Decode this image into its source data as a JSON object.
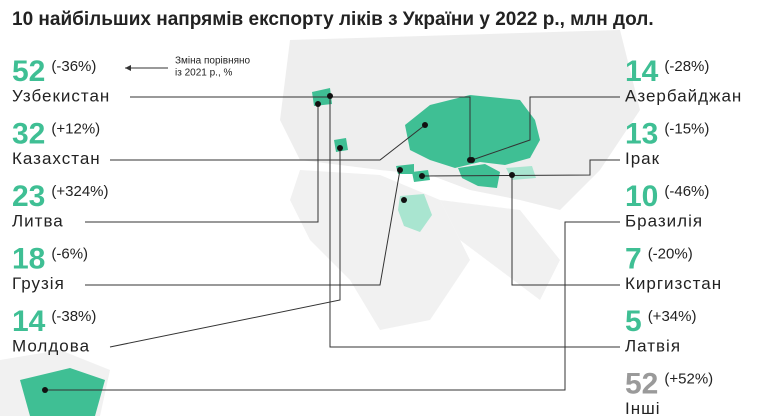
{
  "title": "10 найбільших напрямів експорту ліків з України у 2022 р., млн дол.",
  "legend_note": [
    "Зміна порівняно",
    "із 2021 р., %"
  ],
  "left_column": [
    {
      "value": "52",
      "change": "(-36%)",
      "country": "Узбекистан"
    },
    {
      "value": "32",
      "change": "(+12%)",
      "country": "Казахстан"
    },
    {
      "value": "23",
      "change": "(+324%)",
      "country": "Литва"
    },
    {
      "value": "18",
      "change": "(-6%)",
      "country": "Грузія"
    },
    {
      "value": "14",
      "change": "(-38%)",
      "country": "Молдова"
    }
  ],
  "right_column": [
    {
      "value": "14",
      "change": "(-28%)",
      "country": "Азербайджан"
    },
    {
      "value": "13",
      "change": "(-15%)",
      "country": "Ірак"
    },
    {
      "value": "10",
      "change": "(-46%)",
      "country": "Бразилія"
    },
    {
      "value": "7",
      "change": "(-20%)",
      "country": "Киргизстан"
    },
    {
      "value": "5",
      "change": "(+34%)",
      "country": "Латвія"
    },
    {
      "value": "52",
      "change": "(+52%)",
      "country": "Інші"
    }
  ]
}
